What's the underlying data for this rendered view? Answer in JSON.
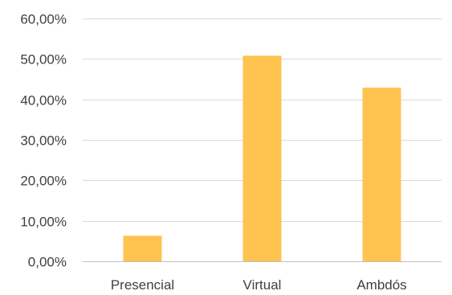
{
  "chart_data": {
    "type": "bar",
    "categories": [
      "Presencial",
      "Virtual",
      "Ambdós"
    ],
    "values": [
      6.3,
      50.8,
      42.9
    ],
    "ylim": [
      0,
      60
    ],
    "y_ticks": [
      0,
      10,
      20,
      30,
      40,
      50,
      60
    ],
    "y_tick_labels": [
      "0,00%",
      "10,00%",
      "20,00%",
      "30,00%",
      "40,00%",
      "50,00%",
      "60,00%"
    ],
    "grid": true,
    "legend": "none",
    "bar_color": "#FFC34F"
  }
}
